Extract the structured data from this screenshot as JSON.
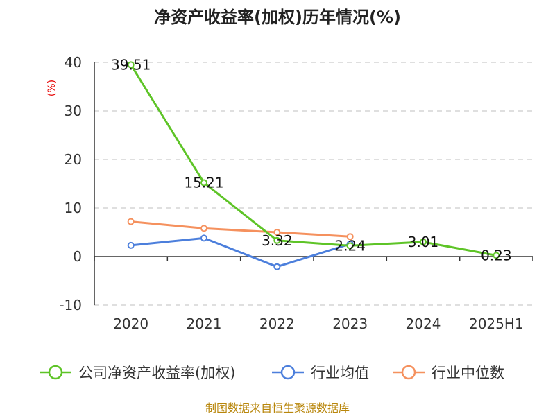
{
  "title": "净资产收益率(加权)历年情况(%)",
  "source": "制图数据来自恒生聚源数据库",
  "colors": {
    "company": "#5ec427",
    "avg": "#4c7fdc",
    "median": "#f5915e"
  },
  "chart_data": {
    "type": "line",
    "title": "净资产收益率(加权)历年情况(%)",
    "ylabel": "(%)",
    "xlabel": "",
    "categories": [
      "2020",
      "2021",
      "2022",
      "2023",
      "2024",
      "2025H1"
    ],
    "ylim": [
      -10,
      40
    ],
    "yticks": [
      "-10",
      "0",
      "10",
      "20",
      "30",
      "40"
    ],
    "grid": true,
    "legend_position": "bottom",
    "series": [
      {
        "name": "公司净资产收益率(加权)",
        "values": [
          39.51,
          15.21,
          3.32,
          2.24,
          3.01,
          0.23
        ],
        "labels": [
          "39.51",
          "15.21",
          "3.32",
          "2.24",
          "3.01",
          "0.23"
        ]
      },
      {
        "name": "行业均值",
        "values": [
          2.3,
          3.8,
          -2.1,
          2.6,
          null,
          null
        ]
      },
      {
        "name": "行业中位数",
        "values": [
          7.2,
          5.8,
          5.0,
          4.1,
          null,
          null
        ]
      }
    ]
  }
}
